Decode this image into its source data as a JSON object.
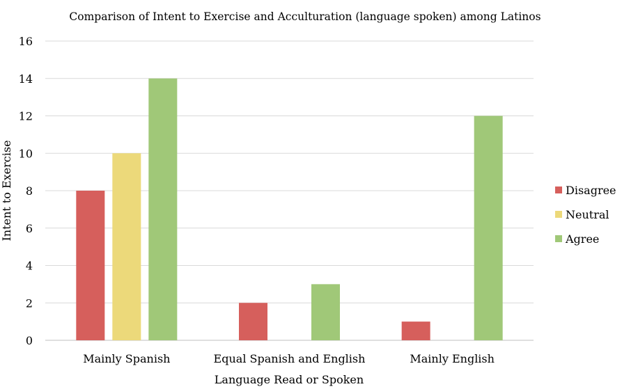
{
  "chart_data": {
    "type": "bar",
    "title": "Comparison of Intent to Exercise and Acculturation (language spoken) among Latinos",
    "xlabel": "Language Read or Spoken",
    "ylabel": "Intent to Exercise",
    "categories": [
      "Mainly Spanish",
      "Equal Spanish and English",
      "Mainly English"
    ],
    "series": [
      {
        "name": "Disagree",
        "color": "#d65f5c",
        "values": [
          8,
          2,
          1
        ]
      },
      {
        "name": "Neutral",
        "color": "#ecd97a",
        "values": [
          10,
          0,
          0
        ]
      },
      {
        "name": "Agree",
        "color": "#a0c878",
        "values": [
          14,
          3,
          12
        ]
      }
    ],
    "ylim": [
      0,
      16
    ],
    "yticks": [
      0,
      2,
      4,
      6,
      8,
      10,
      12,
      14,
      16
    ],
    "grid": true,
    "legend_position": "right"
  }
}
